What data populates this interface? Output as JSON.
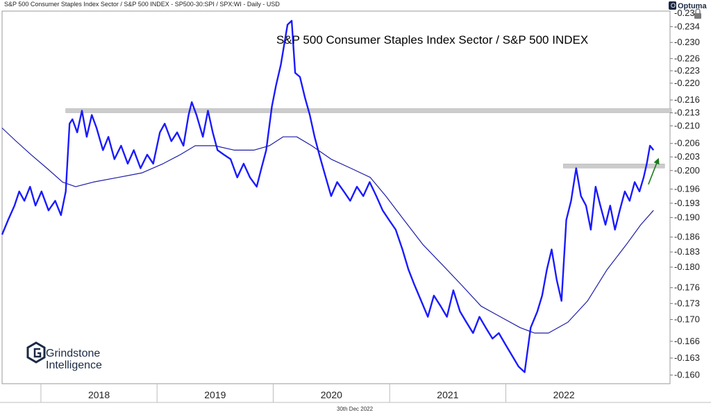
{
  "header_text": "S&P 500 Consumer Staples Index Sector / S&P 500 INDEX - SP500-30:SPI / SPX:WI - Daily - USD",
  "vendor_logo": "Optuma",
  "footer_date": "30th Dec 2022",
  "brand": {
    "line1": "Grindstone",
    "line2": "Intelligence"
  },
  "colors": {
    "price": "#1a1aff",
    "ma": "#1c1ca8",
    "resistance": "#cccccc",
    "arrow": "#1a7a1a"
  },
  "icons": [
    "grindstone-logo-icon",
    "optuma-logo-icon",
    "lock-icon"
  ],
  "chart_data": {
    "type": "line",
    "title": "S&P 500 Consumer Staples Index Sector / S&P 500 INDEX",
    "xlabel": "",
    "ylabel": "",
    "scale": "log",
    "ylim": [
      0.1585,
      0.238
    ],
    "x_range": [
      "2017-09-01",
      "2023-06-01"
    ],
    "y_ticks": [
      "0.160",
      "0.163",
      "0.166",
      "0.170",
      "0.173",
      "0.176",
      "0.180",
      "0.183",
      "0.186",
      "0.190",
      "0.193",
      "0.196",
      "0.200",
      "0.203",
      "0.206",
      "0.210",
      "0.213",
      "0.216",
      "0.220",
      "0.223",
      "0.226",
      "0.230",
      "0.234"
    ],
    "top_tick_partial": "0.23",
    "x_ticks": [
      "2018",
      "2019",
      "2020",
      "2021",
      "2022"
    ],
    "grid": false,
    "legend": "none",
    "series": [
      {
        "type": "line",
        "points": [
          [
            "2017-09-01",
            0.1865
          ],
          [
            "2017-09-20",
            0.1895
          ],
          [
            "2017-10-10",
            0.1925
          ],
          [
            "2017-10-25",
            0.1955
          ],
          [
            "2017-11-10",
            0.1935
          ],
          [
            "2017-11-28",
            0.1965
          ],
          [
            "2017-12-15",
            0.1925
          ],
          [
            "2018-01-03",
            0.1955
          ],
          [
            "2018-01-25",
            0.1915
          ],
          [
            "2018-02-15",
            0.1935
          ],
          [
            "2018-03-05",
            0.1905
          ],
          [
            "2018-03-20",
            0.1955
          ],
          [
            "2018-04-01",
            0.2105
          ],
          [
            "2018-04-10",
            0.2115
          ],
          [
            "2018-04-25",
            0.2085
          ],
          [
            "2018-05-10",
            0.2135
          ],
          [
            "2018-05-25",
            0.2075
          ],
          [
            "2018-06-10",
            0.2125
          ],
          [
            "2018-06-25",
            0.2095
          ],
          [
            "2018-07-15",
            0.2045
          ],
          [
            "2018-08-01",
            0.2075
          ],
          [
            "2018-08-20",
            0.2025
          ],
          [
            "2018-09-10",
            0.2055
          ],
          [
            "2018-10-01",
            0.2015
          ],
          [
            "2018-10-20",
            0.2045
          ],
          [
            "2018-11-10",
            0.2005
          ],
          [
            "2018-12-01",
            0.2035
          ],
          [
            "2018-12-20",
            0.2015
          ],
          [
            "2019-01-10",
            0.2085
          ],
          [
            "2019-01-25",
            0.2105
          ],
          [
            "2019-02-15",
            0.2065
          ],
          [
            "2019-03-05",
            0.2085
          ],
          [
            "2019-03-25",
            0.2055
          ],
          [
            "2019-04-10",
            0.2125
          ],
          [
            "2019-04-20",
            0.2155
          ],
          [
            "2019-05-05",
            0.2125
          ],
          [
            "2019-05-25",
            0.2075
          ],
          [
            "2019-06-10",
            0.2135
          ],
          [
            "2019-06-25",
            0.2085
          ],
          [
            "2019-07-10",
            0.2045
          ],
          [
            "2019-07-30",
            0.2035
          ],
          [
            "2019-08-20",
            0.2025
          ],
          [
            "2019-09-10",
            0.1985
          ],
          [
            "2019-09-30",
            0.2015
          ],
          [
            "2019-10-20",
            0.1985
          ],
          [
            "2019-11-10",
            0.1965
          ],
          [
            "2019-11-25",
            0.2005
          ],
          [
            "2019-12-10",
            0.2045
          ],
          [
            "2019-12-28",
            0.2145
          ],
          [
            "2020-01-10",
            0.2195
          ],
          [
            "2020-01-25",
            0.2245
          ],
          [
            "2020-02-15",
            0.2345
          ],
          [
            "2020-02-28",
            0.2355
          ],
          [
            "2020-03-10",
            0.2225
          ],
          [
            "2020-03-25",
            0.2215
          ],
          [
            "2020-04-10",
            0.2165
          ],
          [
            "2020-04-25",
            0.2125
          ],
          [
            "2020-05-10",
            0.2075
          ],
          [
            "2020-05-25",
            0.2035
          ],
          [
            "2020-06-10",
            0.1995
          ],
          [
            "2020-07-01",
            0.1945
          ],
          [
            "2020-07-20",
            0.1975
          ],
          [
            "2020-08-10",
            0.1955
          ],
          [
            "2020-08-30",
            0.1935
          ],
          [
            "2020-09-20",
            0.1965
          ],
          [
            "2020-10-10",
            0.1945
          ],
          [
            "2020-10-30",
            0.1975
          ],
          [
            "2020-11-20",
            0.1945
          ],
          [
            "2020-12-10",
            0.1915
          ],
          [
            "2020-12-30",
            0.1895
          ],
          [
            "2021-01-20",
            0.1875
          ],
          [
            "2021-02-10",
            0.1835
          ],
          [
            "2021-03-01",
            0.1795
          ],
          [
            "2021-03-20",
            0.1765
          ],
          [
            "2021-04-10",
            0.1735
          ],
          [
            "2021-05-01",
            0.1705
          ],
          [
            "2021-05-20",
            0.1745
          ],
          [
            "2021-06-10",
            0.1725
          ],
          [
            "2021-06-30",
            0.1705
          ],
          [
            "2021-07-20",
            0.1755
          ],
          [
            "2021-08-10",
            0.1715
          ],
          [
            "2021-08-30",
            0.1695
          ],
          [
            "2021-09-20",
            0.1675
          ],
          [
            "2021-10-10",
            0.1705
          ],
          [
            "2021-10-30",
            0.1685
          ],
          [
            "2021-11-20",
            0.1665
          ],
          [
            "2021-12-10",
            0.1675
          ],
          [
            "2021-12-30",
            0.1655
          ],
          [
            "2022-01-20",
            0.1635
          ],
          [
            "2022-02-10",
            0.1615
          ],
          [
            "2022-03-01",
            0.1605
          ],
          [
            "2022-03-20",
            0.1685
          ],
          [
            "2022-04-10",
            0.1715
          ],
          [
            "2022-04-25",
            0.1745
          ],
          [
            "2022-05-10",
            0.1795
          ],
          [
            "2022-05-25",
            0.1835
          ],
          [
            "2022-06-10",
            0.1775
          ],
          [
            "2022-06-25",
            0.1735
          ],
          [
            "2022-07-10",
            0.1895
          ],
          [
            "2022-07-25",
            0.1935
          ],
          [
            "2022-08-10",
            0.2005
          ],
          [
            "2022-08-25",
            0.1945
          ],
          [
            "2022-09-10",
            0.1925
          ],
          [
            "2022-09-25",
            0.1875
          ],
          [
            "2022-10-10",
            0.1965
          ],
          [
            "2022-10-25",
            0.1925
          ],
          [
            "2022-11-10",
            0.1885
          ],
          [
            "2022-11-25",
            0.1925
          ],
          [
            "2022-12-10",
            0.1875
          ],
          [
            "2022-12-25",
            0.1915
          ],
          [
            "2023-01-10",
            0.1955
          ],
          [
            "2023-01-25",
            0.1935
          ],
          [
            "2023-02-10",
            0.1975
          ],
          [
            "2023-02-25",
            0.1955
          ],
          [
            "2023-03-10",
            0.1985
          ],
          [
            "2023-03-20",
            0.2015
          ],
          [
            "2023-03-30",
            0.2055
          ],
          [
            "2023-04-10",
            0.2045
          ]
        ]
      },
      {
        "type": "line",
        "points": [
          [
            "2017-09-01",
            0.2095
          ],
          [
            "2017-10-15",
            0.2065
          ],
          [
            "2017-12-01",
            0.2035
          ],
          [
            "2018-01-20",
            0.2005
          ],
          [
            "2018-03-10",
            0.1975
          ],
          [
            "2018-04-20",
            0.1965
          ],
          [
            "2018-06-15",
            0.1975
          ],
          [
            "2018-09-01",
            0.1985
          ],
          [
            "2018-11-15",
            0.1995
          ],
          [
            "2019-01-20",
            0.2015
          ],
          [
            "2019-03-15",
            0.2035
          ],
          [
            "2019-05-01",
            0.2055
          ],
          [
            "2019-07-01",
            0.2055
          ],
          [
            "2019-09-01",
            0.2045
          ],
          [
            "2019-11-01",
            0.2045
          ],
          [
            "2019-12-20",
            0.2055
          ],
          [
            "2020-02-01",
            0.2075
          ],
          [
            "2020-03-15",
            0.2075
          ],
          [
            "2020-05-01",
            0.2055
          ],
          [
            "2020-07-01",
            0.2025
          ],
          [
            "2020-09-01",
            0.2005
          ],
          [
            "2020-11-01",
            0.1985
          ],
          [
            "2020-12-20",
            0.1945
          ],
          [
            "2021-02-15",
            0.1895
          ],
          [
            "2021-04-15",
            0.1845
          ],
          [
            "2021-06-15",
            0.1805
          ],
          [
            "2021-08-15",
            0.1765
          ],
          [
            "2021-10-15",
            0.1725
          ],
          [
            "2021-12-15",
            0.1705
          ],
          [
            "2022-02-15",
            0.1685
          ],
          [
            "2022-04-01",
            0.1675
          ],
          [
            "2022-05-15",
            0.1675
          ],
          [
            "2022-07-15",
            0.1695
          ],
          [
            "2022-09-15",
            0.1735
          ],
          [
            "2022-11-15",
            0.1795
          ],
          [
            "2023-01-15",
            0.1845
          ],
          [
            "2023-03-01",
            0.1885
          ],
          [
            "2023-04-10",
            0.1915
          ]
        ]
      }
    ],
    "annotations": [
      {
        "type": "resistance_band",
        "x_start": "2018-03-20",
        "x_end": "2023-07-01",
        "y": 0.2135
      },
      {
        "type": "resistance_band",
        "x_start": "2022-07-01",
        "x_end": "2023-05-15",
        "y": 0.201
      },
      {
        "type": "arrow",
        "from": [
          "2023-03-25",
          0.197
        ],
        "to": [
          "2023-04-25",
          0.2025
        ]
      }
    ]
  }
}
